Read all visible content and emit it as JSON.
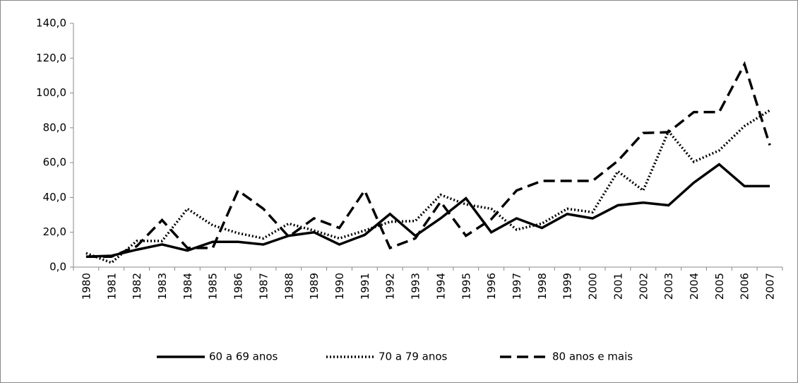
{
  "chart_data": {
    "type": "line",
    "categories": [
      "1980",
      "1981",
      "1982",
      "1983",
      "1984",
      "1985",
      "1986",
      "1987",
      "1988",
      "1989",
      "1990",
      "1991",
      "1992",
      "1993",
      "1994",
      "1995",
      "1996",
      "1997",
      "1998",
      "1999",
      "2000",
      "2001",
      "2002",
      "2003",
      "2004",
      "2005",
      "2006",
      "2007"
    ],
    "series": [
      {
        "name": "60 a 69 anos",
        "color": "#000000",
        "dash": "solid",
        "values": [
          6,
          6.5,
          10,
          13,
          9.5,
          14.5,
          14.5,
          13,
          18,
          20,
          13,
          18.5,
          30.5,
          18,
          28,
          39.5,
          20,
          28,
          22.5,
          30.5,
          28,
          35.5,
          37,
          35.5,
          48.5,
          59,
          46.5,
          46.5
        ]
      },
      {
        "name": "70 a 79 anos",
        "color": "#000000",
        "dash": "dotted",
        "values": [
          8,
          2.5,
          15,
          15,
          33.5,
          24,
          19.5,
          16.5,
          25,
          21,
          16.5,
          21,
          26,
          26.5,
          41.5,
          36,
          33.5,
          21.5,
          25,
          33.5,
          31.5,
          55,
          44,
          78,
          60.5,
          67,
          81,
          90
        ]
      },
      {
        "name": "80 anos e mais",
        "color": "#000000",
        "dash": "dashed",
        "values": [
          6,
          6,
          12,
          27,
          11,
          11,
          44,
          33.5,
          17.5,
          28,
          22.5,
          44,
          11,
          16.5,
          37.5,
          18,
          27.5,
          44,
          49.5,
          49.5,
          49.5,
          61,
          77,
          77.5,
          89,
          89,
          116.5,
          70
        ]
      }
    ],
    "ylim": [
      0,
      140
    ],
    "yticks": [
      {
        "value": 0,
        "label": "0,0"
      },
      {
        "value": 20,
        "label": "20,0"
      },
      {
        "value": 40,
        "label": "40,0"
      },
      {
        "value": 60,
        "label": "60,0"
      },
      {
        "value": 80,
        "label": "80,0"
      },
      {
        "value": 100,
        "label": "100,0"
      },
      {
        "value": 120,
        "label": "120,0"
      },
      {
        "value": 140,
        "label": "140,0"
      }
    ],
    "grid": false,
    "legend": "bottom"
  }
}
